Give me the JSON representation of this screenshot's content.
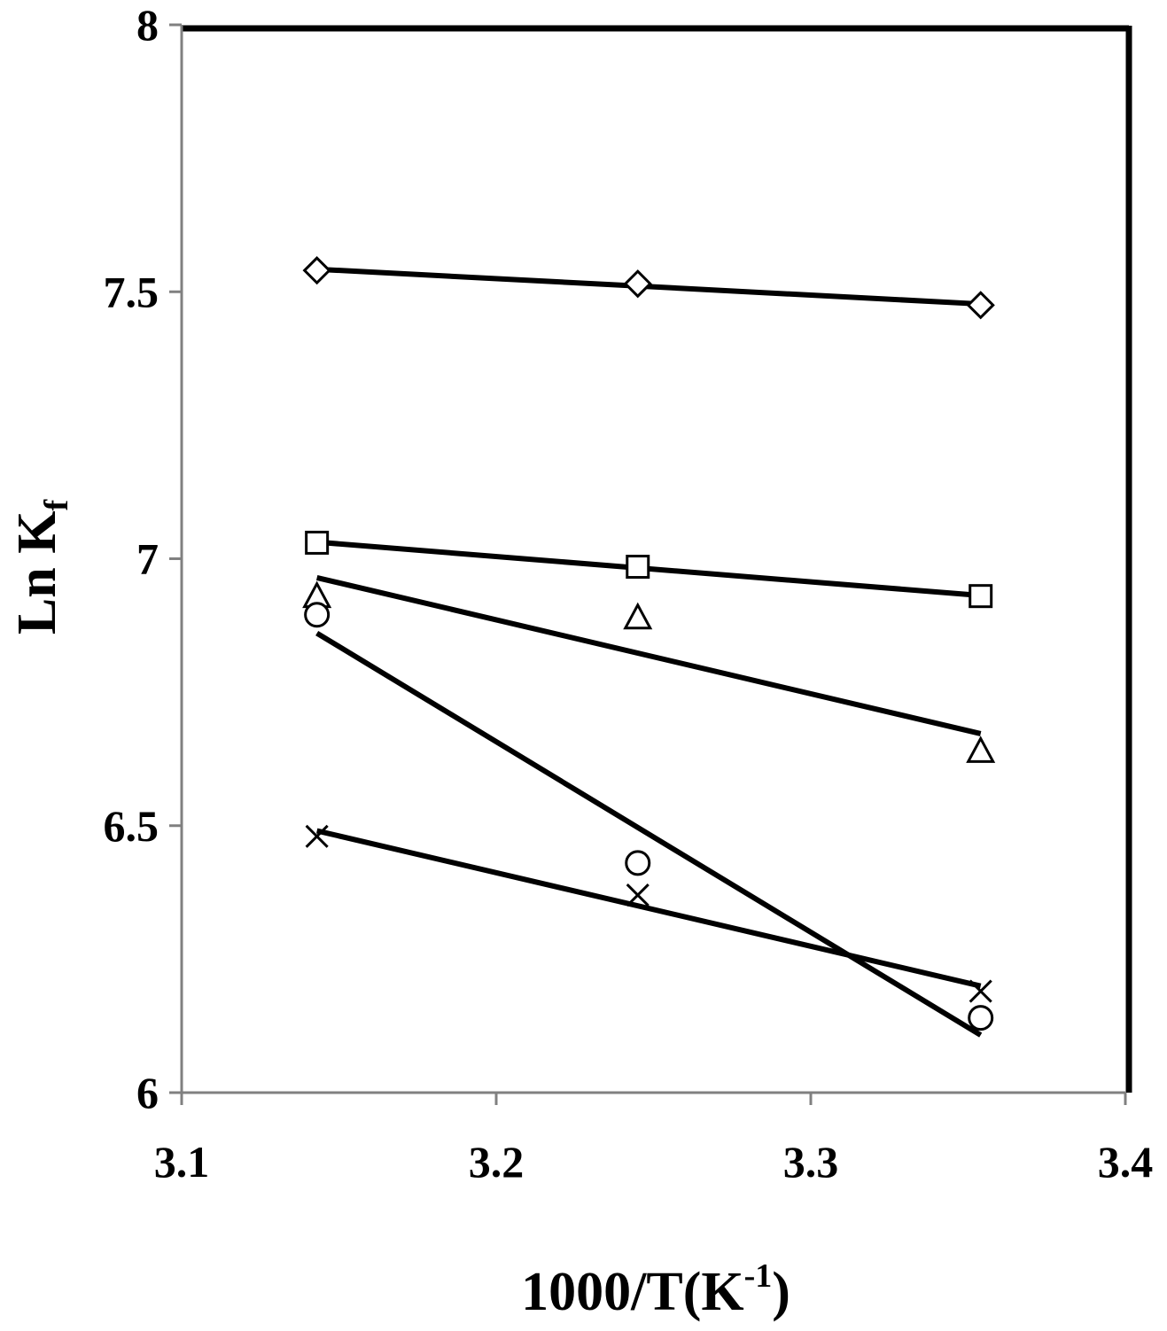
{
  "chart_data": {
    "type": "scatter",
    "xlabel": [
      "1000/T(K",
      "-1",
      ")"
    ],
    "ylabel": [
      "Ln K",
      "f"
    ],
    "xlim": [
      3.1,
      3.4
    ],
    "xticks": [
      {
        "value": 3.1,
        "label": "3.1"
      },
      3.2,
      3.3,
      3.4
    ],
    "ylim": [
      6,
      8
    ],
    "yticks": [
      6,
      6.5,
      7,
      7.5,
      8
    ],
    "trendline": "linear",
    "series": [
      {
        "marker": "diamond",
        "color": "#000000",
        "x": [
          3.143,
          3.245,
          3.354
        ],
        "values": [
          7.54,
          7.515,
          7.475
        ]
      },
      {
        "marker": "square",
        "color": "#000000",
        "x": [
          3.143,
          3.245,
          3.354
        ],
        "values": [
          7.03,
          6.985,
          6.93
        ]
      },
      {
        "marker": "triangle",
        "color": "#000000",
        "x": [
          3.143,
          3.245,
          3.354
        ],
        "values": [
          6.93,
          6.89,
          6.64
        ]
      },
      {
        "marker": "circle",
        "color": "#000000",
        "x": [
          3.143,
          3.245,
          3.354
        ],
        "values": [
          6.895,
          6.43,
          6.14
        ]
      },
      {
        "marker": "cross",
        "color": "#000000",
        "x": [
          3.143,
          3.245,
          3.354
        ],
        "values": [
          6.48,
          6.37,
          6.19
        ]
      }
    ]
  }
}
